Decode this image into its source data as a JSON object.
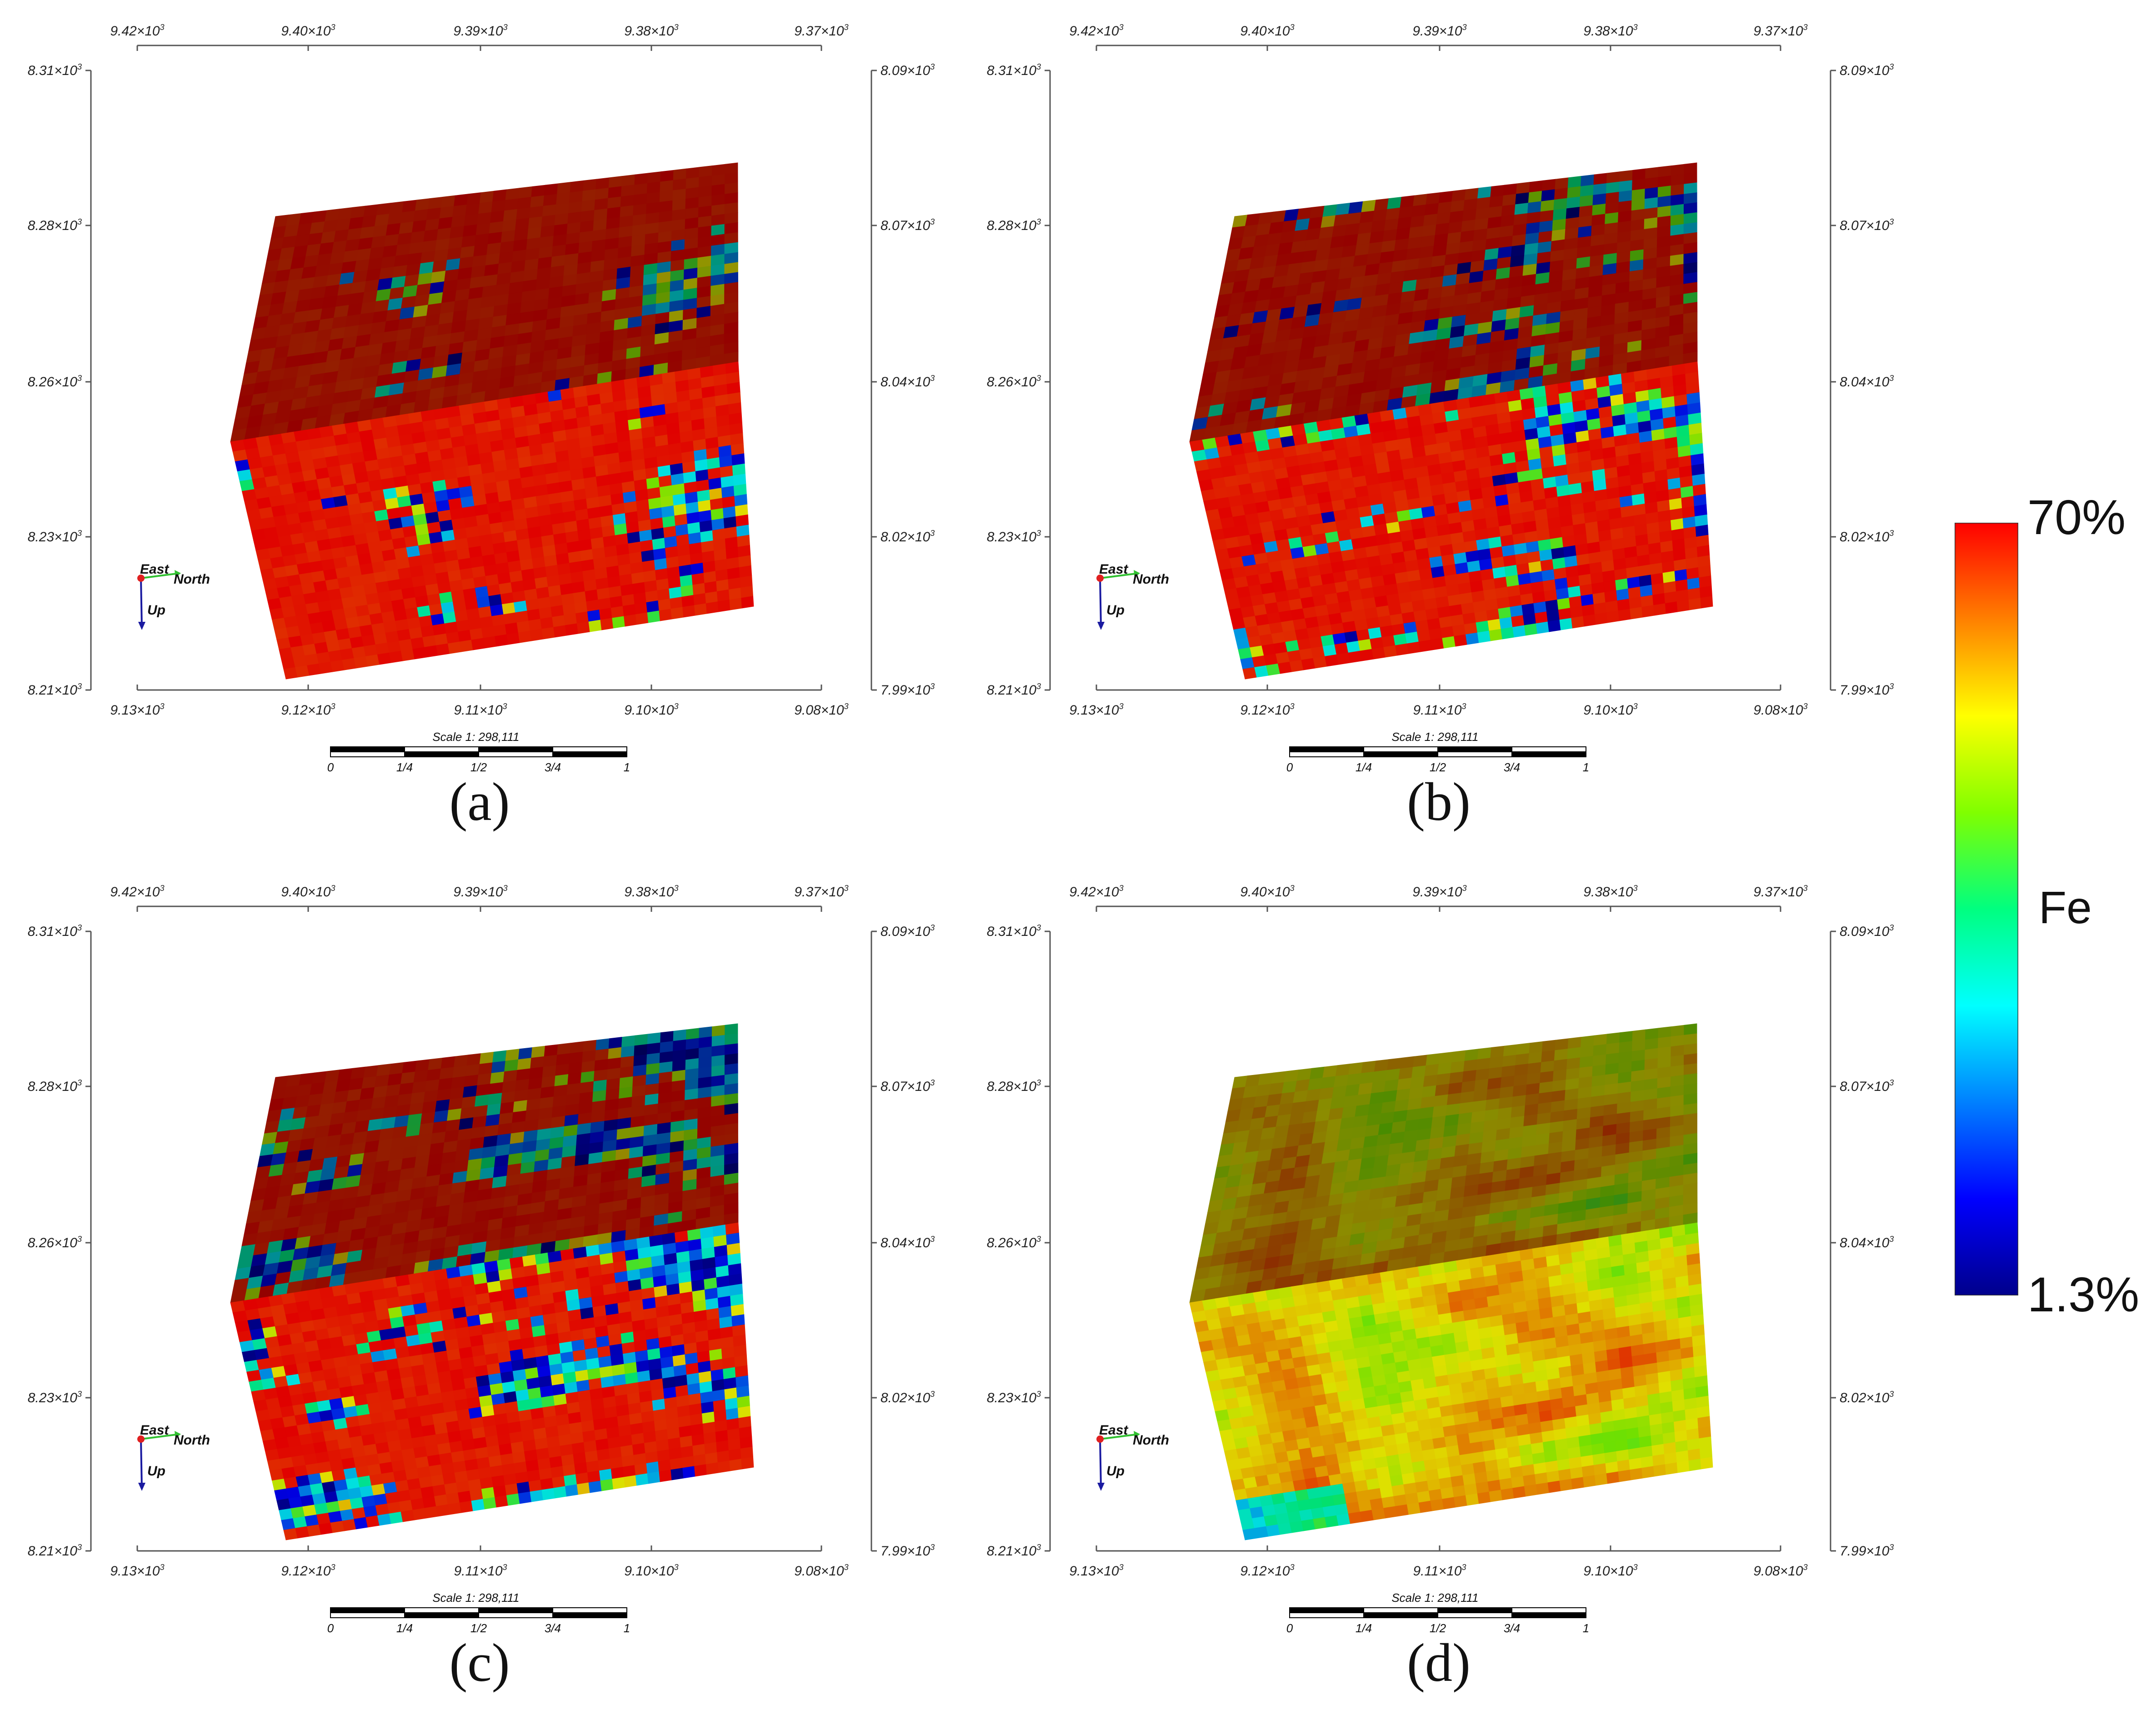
{
  "panels": [
    {
      "label": "(a)",
      "seed": 11,
      "style": "sparse"
    },
    {
      "label": "(b)",
      "seed": 29,
      "style": "bands"
    },
    {
      "label": "(c)",
      "seed": 47,
      "style": "heavy"
    },
    {
      "label": "(d)",
      "seed": 83,
      "style": "smooth"
    }
  ],
  "axes": {
    "top_ticks": [
      "9.42×10³",
      "9.40×10³",
      "9.39×10³",
      "9.38×10³",
      "9.37×10³"
    ],
    "bottom_ticks": [
      "9.13×10³",
      "9.12×10³",
      "9.11×10³",
      "9.10×10³",
      "9.08×10³"
    ],
    "left_ticks": [
      "8.31×10³",
      "8.28×10³",
      "8.26×10³",
      "8.23×10³",
      "8.21×10³"
    ],
    "right_ticks": [
      "8.09×10³",
      "8.07×10³",
      "8.04×10³",
      "8.02×10³",
      "7.99×10³"
    ]
  },
  "scale_bar": {
    "title": "Scale 1: 298,111",
    "marks": [
      "0",
      "1/4",
      "1/2",
      "3/4",
      "1"
    ]
  },
  "orientation": {
    "east": "East",
    "north": "North",
    "up": "Up"
  },
  "colorbar": {
    "variable": "Fe",
    "max_label": "70%",
    "min_label": "1.3%",
    "colors": [
      "#00008b",
      "#0000ff",
      "#0080ff",
      "#00ffff",
      "#00ff80",
      "#80ff00",
      "#ffff00",
      "#ff8000",
      "#ff0000"
    ]
  },
  "chart_data": {
    "type": "heatmap",
    "variable": "Fe",
    "range": [
      1.3,
      70
    ],
    "unit": "%"
  }
}
